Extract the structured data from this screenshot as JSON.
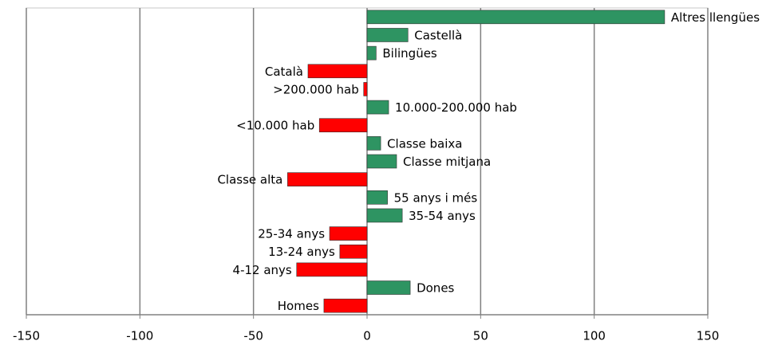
{
  "chart_data": {
    "type": "hbar",
    "categories": [
      "Altres llengües",
      "Castellà",
      "Bilingües",
      "Català",
      ">200.000 hab",
      "10.000-200.000 hab",
      "<10.000 hab",
      "Classe baixa",
      "Classe mitjana",
      "Classe alta",
      "55 anys i més",
      "35-54 anys",
      "25-34 anys",
      "13-24 anys",
      "4-12 anys",
      "Dones",
      "Homes"
    ],
    "values": [
      131,
      18,
      4,
      -26,
      -1.5,
      9.5,
      -21,
      6,
      13,
      -35,
      9,
      15.5,
      -16.5,
      -12,
      -31,
      19,
      -19
    ],
    "positive_color": "#2e9462",
    "negative_color": "#ff0000",
    "xlim": [
      -150,
      150
    ],
    "xticks": [
      -150,
      -100,
      -50,
      0,
      50,
      100,
      150
    ],
    "grid": true
  }
}
